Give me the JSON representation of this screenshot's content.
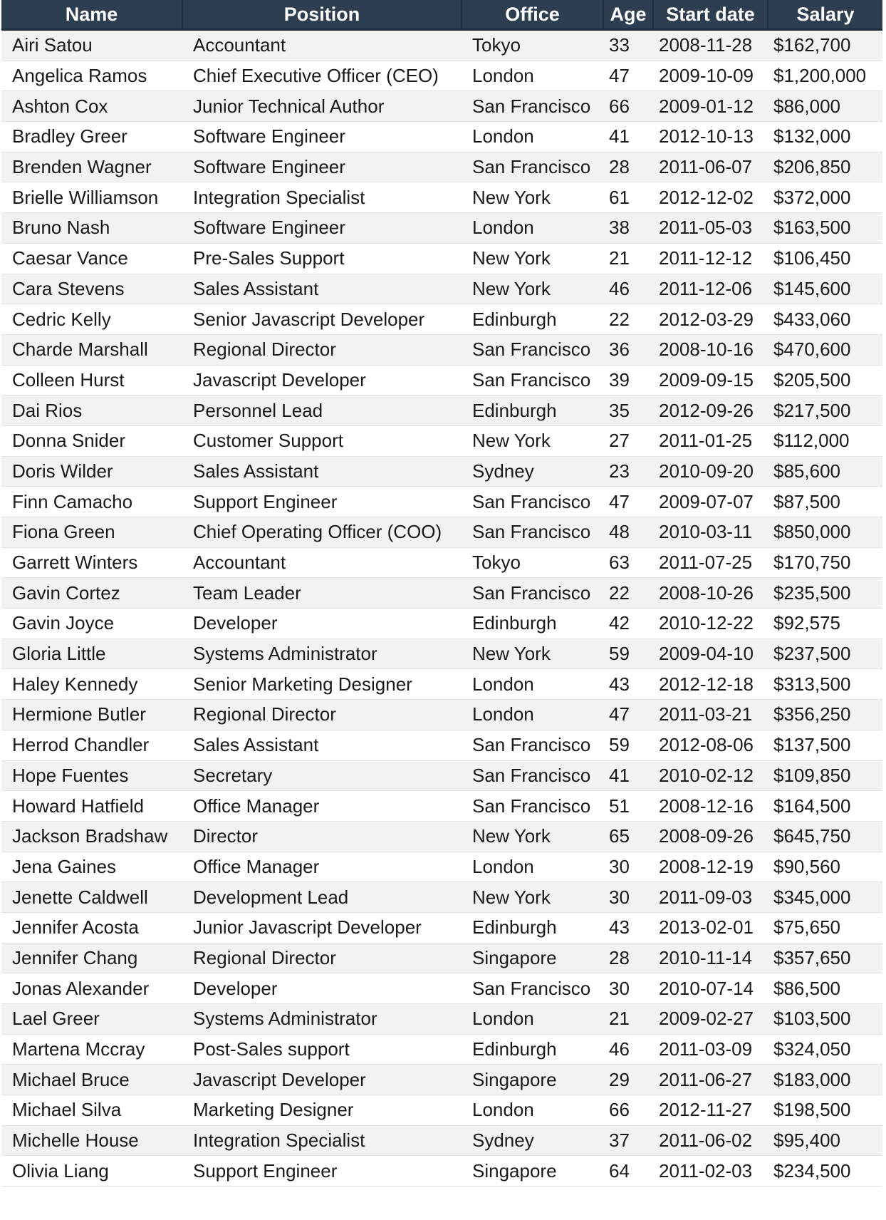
{
  "table": {
    "headers": {
      "name": "Name",
      "position": "Position",
      "office": "Office",
      "age": "Age",
      "start_date": "Start date",
      "salary": "Salary"
    },
    "rows": [
      {
        "name": "Airi Satou",
        "position": "Accountant",
        "office": "Tokyo",
        "age": "33",
        "start_date": "2008-11-28",
        "salary": "$162,700"
      },
      {
        "name": "Angelica Ramos",
        "position": "Chief Executive Officer (CEO)",
        "office": "London",
        "age": "47",
        "start_date": "2009-10-09",
        "salary": "$1,200,000"
      },
      {
        "name": "Ashton Cox",
        "position": "Junior Technical Author",
        "office": "San Francisco",
        "age": "66",
        "start_date": "2009-01-12",
        "salary": "$86,000"
      },
      {
        "name": "Bradley Greer",
        "position": "Software Engineer",
        "office": "London",
        "age": "41",
        "start_date": "2012-10-13",
        "salary": "$132,000"
      },
      {
        "name": "Brenden Wagner",
        "position": "Software Engineer",
        "office": "San Francisco",
        "age": "28",
        "start_date": "2011-06-07",
        "salary": "$206,850"
      },
      {
        "name": "Brielle Williamson",
        "position": "Integration Specialist",
        "office": "New York",
        "age": "61",
        "start_date": "2012-12-02",
        "salary": "$372,000"
      },
      {
        "name": "Bruno Nash",
        "position": "Software Engineer",
        "office": "London",
        "age": "38",
        "start_date": "2011-05-03",
        "salary": "$163,500"
      },
      {
        "name": "Caesar Vance",
        "position": "Pre-Sales Support",
        "office": "New York",
        "age": "21",
        "start_date": "2011-12-12",
        "salary": "$106,450"
      },
      {
        "name": "Cara Stevens",
        "position": "Sales Assistant",
        "office": "New York",
        "age": "46",
        "start_date": "2011-12-06",
        "salary": "$145,600"
      },
      {
        "name": "Cedric Kelly",
        "position": "Senior Javascript Developer",
        "office": "Edinburgh",
        "age": "22",
        "start_date": "2012-03-29",
        "salary": "$433,060"
      },
      {
        "name": "Charde Marshall",
        "position": "Regional Director",
        "office": "San Francisco",
        "age": "36",
        "start_date": "2008-10-16",
        "salary": "$470,600"
      },
      {
        "name": "Colleen Hurst",
        "position": "Javascript Developer",
        "office": "San Francisco",
        "age": "39",
        "start_date": "2009-09-15",
        "salary": "$205,500"
      },
      {
        "name": "Dai Rios",
        "position": "Personnel Lead",
        "office": "Edinburgh",
        "age": "35",
        "start_date": "2012-09-26",
        "salary": "$217,500"
      },
      {
        "name": "Donna Snider",
        "position": "Customer Support",
        "office": "New York",
        "age": "27",
        "start_date": "2011-01-25",
        "salary": "$112,000"
      },
      {
        "name": "Doris Wilder",
        "position": "Sales Assistant",
        "office": "Sydney",
        "age": "23",
        "start_date": "2010-09-20",
        "salary": "$85,600"
      },
      {
        "name": "Finn Camacho",
        "position": "Support Engineer",
        "office": "San Francisco",
        "age": "47",
        "start_date": "2009-07-07",
        "salary": "$87,500"
      },
      {
        "name": "Fiona Green",
        "position": "Chief Operating Officer (COO)",
        "office": "San Francisco",
        "age": "48",
        "start_date": "2010-03-11",
        "salary": "$850,000"
      },
      {
        "name": "Garrett Winters",
        "position": "Accountant",
        "office": "Tokyo",
        "age": "63",
        "start_date": "2011-07-25",
        "salary": "$170,750"
      },
      {
        "name": "Gavin Cortez",
        "position": "Team Leader",
        "office": "San Francisco",
        "age": "22",
        "start_date": "2008-10-26",
        "salary": "$235,500"
      },
      {
        "name": "Gavin Joyce",
        "position": "Developer",
        "office": "Edinburgh",
        "age": "42",
        "start_date": "2010-12-22",
        "salary": "$92,575"
      },
      {
        "name": "Gloria Little",
        "position": "Systems Administrator",
        "office": "New York",
        "age": "59",
        "start_date": "2009-04-10",
        "salary": "$237,500"
      },
      {
        "name": "Haley Kennedy",
        "position": "Senior Marketing Designer",
        "office": "London",
        "age": "43",
        "start_date": "2012-12-18",
        "salary": "$313,500"
      },
      {
        "name": "Hermione Butler",
        "position": "Regional Director",
        "office": "London",
        "age": "47",
        "start_date": "2011-03-21",
        "salary": "$356,250"
      },
      {
        "name": "Herrod Chandler",
        "position": "Sales Assistant",
        "office": "San Francisco",
        "age": "59",
        "start_date": "2012-08-06",
        "salary": "$137,500"
      },
      {
        "name": "Hope Fuentes",
        "position": "Secretary",
        "office": "San Francisco",
        "age": "41",
        "start_date": "2010-02-12",
        "salary": "$109,850"
      },
      {
        "name": "Howard Hatfield",
        "position": "Office Manager",
        "office": "San Francisco",
        "age": "51",
        "start_date": "2008-12-16",
        "salary": "$164,500"
      },
      {
        "name": "Jackson Bradshaw",
        "position": "Director",
        "office": "New York",
        "age": "65",
        "start_date": "2008-09-26",
        "salary": "$645,750"
      },
      {
        "name": "Jena Gaines",
        "position": "Office Manager",
        "office": "London",
        "age": "30",
        "start_date": "2008-12-19",
        "salary": "$90,560"
      },
      {
        "name": "Jenette Caldwell",
        "position": "Development Lead",
        "office": "New York",
        "age": "30",
        "start_date": "2011-09-03",
        "salary": "$345,000"
      },
      {
        "name": "Jennifer Acosta",
        "position": "Junior Javascript Developer",
        "office": "Edinburgh",
        "age": "43",
        "start_date": "2013-02-01",
        "salary": "$75,650"
      },
      {
        "name": "Jennifer Chang",
        "position": "Regional Director",
        "office": "Singapore",
        "age": "28",
        "start_date": "2010-11-14",
        "salary": "$357,650"
      },
      {
        "name": "Jonas Alexander",
        "position": "Developer",
        "office": "San Francisco",
        "age": "30",
        "start_date": "2010-07-14",
        "salary": "$86,500"
      },
      {
        "name": "Lael Greer",
        "position": "Systems Administrator",
        "office": "London",
        "age": "21",
        "start_date": "2009-02-27",
        "salary": "$103,500"
      },
      {
        "name": "Martena Mccray",
        "position": "Post-Sales support",
        "office": "Edinburgh",
        "age": "46",
        "start_date": "2011-03-09",
        "salary": "$324,050"
      },
      {
        "name": "Michael Bruce",
        "position": "Javascript Developer",
        "office": "Singapore",
        "age": "29",
        "start_date": "2011-06-27",
        "salary": "$183,000"
      },
      {
        "name": "Michael Silva",
        "position": "Marketing Designer",
        "office": "London",
        "age": "66",
        "start_date": "2012-11-27",
        "salary": "$198,500"
      },
      {
        "name": "Michelle House",
        "position": "Integration Specialist",
        "office": "Sydney",
        "age": "37",
        "start_date": "2011-06-02",
        "salary": "$95,400"
      },
      {
        "name": "Olivia Liang",
        "position": "Support Engineer",
        "office": "Singapore",
        "age": "64",
        "start_date": "2011-02-03",
        "salary": "$234,500"
      }
    ]
  },
  "colors": {
    "header_bg": "#2c3e50",
    "header_text": "#ffffff",
    "row_stripe": "#f2f2f2",
    "row_plain": "#ffffff"
  }
}
